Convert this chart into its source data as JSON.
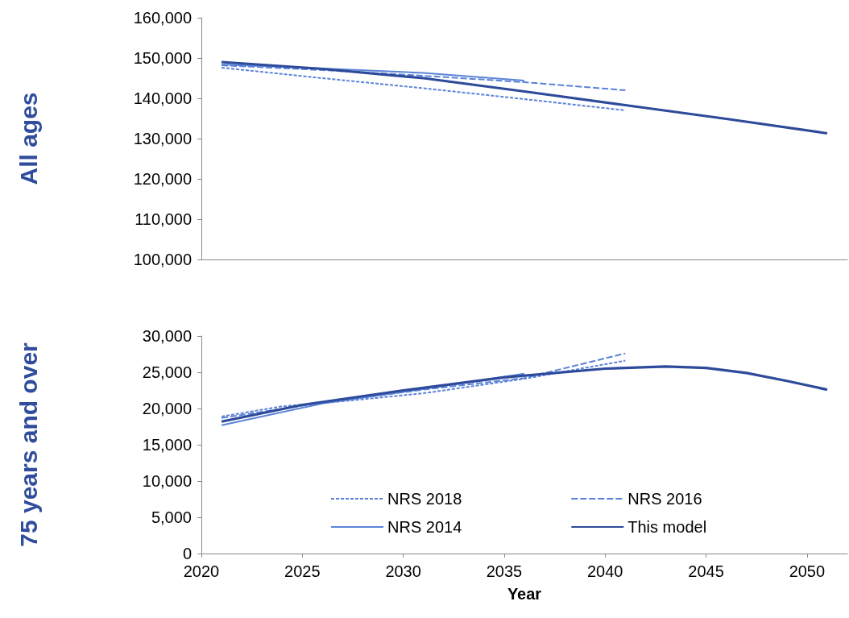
{
  "chart_data": [
    {
      "type": "line",
      "ylabel": "All ages",
      "xlim": [
        2020,
        2052
      ],
      "xticks": [
        2020,
        2025,
        2030,
        2035,
        2040,
        2045,
        2050
      ],
      "ylim": [
        100000,
        160000
      ],
      "yticks": [
        {
          "value": 100000,
          "label": "100,000"
        },
        {
          "value": 110000,
          "label": "110,000"
        },
        {
          "value": 120000,
          "label": "120,000"
        },
        {
          "value": 130000,
          "label": "130,000"
        },
        {
          "value": 140000,
          "label": "140,000"
        },
        {
          "value": 150000,
          "label": "150,000"
        },
        {
          "value": 160000,
          "label": "160,000"
        }
      ],
      "tick_labels": "y",
      "grid": false,
      "legend": false,
      "marker": "none",
      "series": [
        {
          "color": "#5b83d8",
          "line_style": "dotted",
          "x": [
            2021,
            2026,
            2031,
            2036,
            2041
          ],
          "values": [
            147600,
            145000,
            142500,
            139800,
            137000
          ]
        },
        {
          "color": "#5b83d8",
          "line_style": "dashed",
          "x": [
            2021,
            2026,
            2031,
            2036,
            2041
          ],
          "values": [
            148200,
            147000,
            145600,
            144000,
            142000
          ]
        },
        {
          "color": "#5b83d8",
          "line_style": "solid",
          "x": [
            2021,
            2026,
            2031,
            2036
          ],
          "values": [
            148400,
            147400,
            146300,
            144400
          ]
        },
        {
          "color": "#2e4a9a",
          "line_style": "solid",
          "x": [
            2021,
            2026,
            2031,
            2036,
            2041,
            2046,
            2051
          ],
          "values": [
            149000,
            147300,
            145000,
            141700,
            138300,
            134900,
            131300
          ]
        }
      ]
    },
    {
      "type": "line",
      "ylabel": "75 years and over",
      "xlabel": "Year",
      "xlim": [
        2020,
        2052
      ],
      "xticks": [
        2020,
        2025,
        2030,
        2035,
        2040,
        2045,
        2050
      ],
      "ylim": [
        0,
        30000
      ],
      "yticks": [
        0,
        {
          "value": 5000,
          "label": "5,000"
        },
        {
          "value": 10000,
          "label": "10,000"
        },
        {
          "value": 15000,
          "label": "15,000"
        },
        {
          "value": 20000,
          "label": "20,000"
        },
        {
          "value": 25000,
          "label": "25,000"
        },
        {
          "value": 30000,
          "label": "30,000"
        }
      ],
      "grid": false,
      "legend": "bottom",
      "marker": "none",
      "series": [
        {
          "name": "NRS 2018",
          "color": "#5b83d8",
          "line_style": "dotted",
          "x": [
            2021,
            2024,
            2027,
            2031,
            2036,
            2041
          ],
          "values": [
            18900,
            20300,
            21000,
            22100,
            24100,
            26600
          ]
        },
        {
          "name": "NRS 2016",
          "color": "#5b83d8",
          "line_style": "dashed",
          "x": [
            2021,
            2026,
            2031,
            2036,
            2041
          ],
          "values": [
            18700,
            20800,
            22600,
            24200,
            27600
          ]
        },
        {
          "name": "NRS 2014",
          "color": "#5b83d8",
          "line_style": "solid",
          "x": [
            2021,
            2026,
            2031,
            2036
          ],
          "values": [
            17700,
            20700,
            22700,
            24800
          ]
        },
        {
          "name": "This model",
          "color": "#2e4a9a",
          "line_style": "solid",
          "x": [
            2021,
            2025,
            2030,
            2035,
            2040,
            2043,
            2045,
            2047,
            2049,
            2051
          ],
          "values": [
            18200,
            20500,
            22500,
            24300,
            25500,
            25800,
            25600,
            24900,
            23800,
            22600
          ]
        }
      ]
    }
  ]
}
